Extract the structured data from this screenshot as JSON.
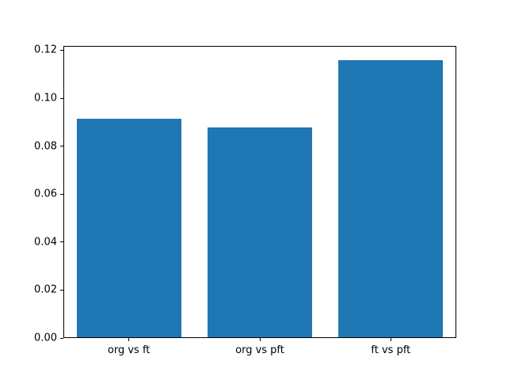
{
  "chart_data": {
    "type": "bar",
    "title": "",
    "xlabel": "",
    "ylabel": "",
    "categories": [
      "org vs ft",
      "org vs pft",
      "ft vs pft"
    ],
    "values": [
      0.0915,
      0.0878,
      0.116
    ],
    "ylim": [
      0,
      0.1218
    ],
    "yticks": [
      0.0,
      0.02,
      0.04,
      0.06,
      0.08,
      0.1,
      0.12
    ],
    "ytick_format_decimals": 2,
    "bar_width_fraction": 0.8,
    "bar_color": "#1f77b4",
    "grid": false,
    "legend": "none",
    "background_color": "#ffffff",
    "axis_color": "#000000"
  }
}
